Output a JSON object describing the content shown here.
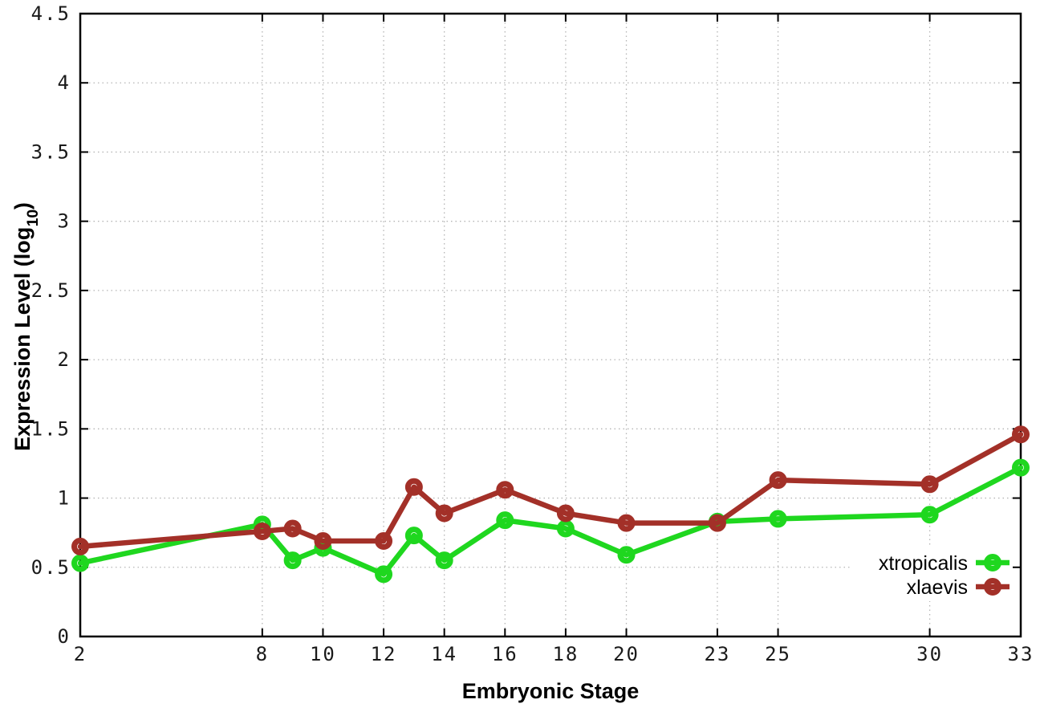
{
  "chart_data": {
    "type": "line",
    "title": "",
    "xlabel": "Embryonic Stage",
    "ylabel": "Expression Level (log10)",
    "ylabel_parts": {
      "prefix": "Expression Level (log",
      "subscript": "10",
      "suffix": ")"
    },
    "x": [
      2,
      8,
      9,
      10,
      12,
      13,
      14,
      16,
      18,
      20,
      23,
      25,
      30,
      33
    ],
    "series": [
      {
        "name": "xtropicalis",
        "color": "#1fd71f",
        "marker": "open-circle",
        "values": [
          0.53,
          0.81,
          0.55,
          0.64,
          0.45,
          0.73,
          0.55,
          0.84,
          0.78,
          0.59,
          0.83,
          0.85,
          0.88,
          1.22
        ]
      },
      {
        "name": "xlaevis",
        "color": "#a33028",
        "marker": "open-circle",
        "values": [
          0.65,
          0.76,
          0.78,
          0.69,
          0.69,
          1.08,
          0.89,
          1.06,
          0.89,
          0.82,
          0.82,
          1.13,
          1.1,
          1.46
        ]
      }
    ],
    "xticks": {
      "values": [
        2,
        8,
        10,
        12,
        14,
        16,
        18,
        20,
        23,
        25,
        30,
        33
      ],
      "labels": [
        "2",
        "8",
        "10",
        "12",
        "14",
        "16",
        "18",
        "20",
        "23",
        "25",
        "30",
        "33"
      ]
    },
    "yticks": {
      "values": [
        0,
        0.5,
        1,
        1.5,
        2,
        2.5,
        3,
        3.5,
        4,
        4.5
      ],
      "labels": [
        "0",
        "0.5",
        "1",
        "1.5",
        "2",
        "2.5",
        "3",
        "3.5",
        "4",
        "4.5"
      ]
    },
    "xlim": [
      2,
      33
    ],
    "ylim": [
      0,
      4.5
    ],
    "grid": true,
    "grid_style": "dotted",
    "grid_color": "#b5b5b5",
    "axis_color": "#000000",
    "background": "#ffffff",
    "legend": {
      "position": "bottom-right",
      "entries": [
        "xtropicalis",
        "xlaevis"
      ]
    }
  }
}
